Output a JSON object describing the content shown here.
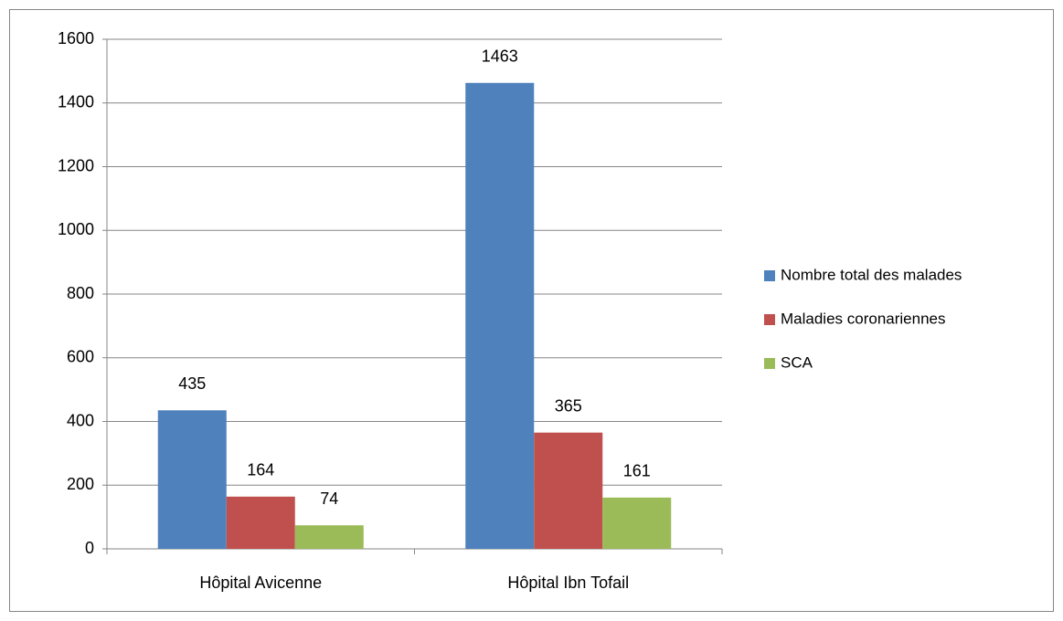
{
  "chart_data": {
    "type": "bar",
    "categories": [
      "Hôpital Avicenne",
      "Hôpital Ibn Tofail"
    ],
    "series": [
      {
        "name": "Nombre total des malades",
        "color": "#4f81bd",
        "values": [
          435,
          1463
        ]
      },
      {
        "name": "Maladies coronariennes",
        "color": "#c0504d",
        "values": [
          164,
          365
        ]
      },
      {
        "name": "SCA",
        "color": "#9bbb59",
        "values": [
          74,
          161
        ]
      }
    ],
    "ylim": [
      0,
      1600
    ],
    "yticks": [
      0,
      200,
      400,
      600,
      800,
      1000,
      1200,
      1400,
      1600
    ],
    "grid": true,
    "legend": "right"
  }
}
